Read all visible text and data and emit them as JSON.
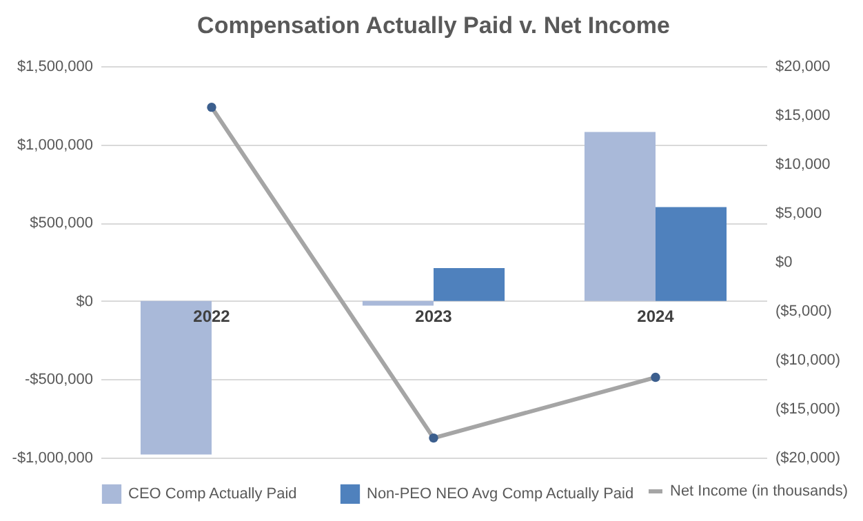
{
  "chart_data": {
    "type": "bar",
    "title": "Compensation Actually Paid v. Net Income",
    "categories": [
      "2022",
      "2023",
      "2024"
    ],
    "series": [
      {
        "name": "CEO Comp Actually Paid",
        "color": "#a9b9d9",
        "values": [
          -980000,
          -30000,
          1080000
        ]
      },
      {
        "name": "Non-PEO NEO Avg Comp Actually Paid",
        "color": "#4f81bd",
        "values": [
          null,
          210000,
          600000
        ]
      },
      {
        "name": "Net Income (in thousands)",
        "type": "line",
        "axis": "y2",
        "color": "#a5a5a5",
        "colors": [
          "#3c5f8e",
          "#3c5f8e",
          "#3c5f8e"
        ],
        "values": [
          15800,
          -18000,
          -11800
        ]
      }
    ],
    "ylim": [
      -1000000,
      1500000
    ],
    "yticks": [
      {
        "value": -1000000,
        "label": "-$1,000,000"
      },
      {
        "value": -500000,
        "label": "-$500,000"
      },
      {
        "value": 0,
        "label": "$0"
      },
      {
        "value": 500000,
        "label": "$500,000"
      },
      {
        "value": 1000000,
        "label": "$1,000,000"
      },
      {
        "value": 1500000,
        "label": "$1,500,000"
      }
    ],
    "y2lim": [
      -20000,
      20000
    ],
    "y2ticks": [
      {
        "value": -20000,
        "label": "($20,000)"
      },
      {
        "value": -15000,
        "label": "($15,000)"
      },
      {
        "value": -10000,
        "label": "($10,000)"
      },
      {
        "value": -5000,
        "label": "($5,000)"
      },
      {
        "value": 0,
        "label": "$0"
      },
      {
        "value": 5000,
        "label": "$5,000"
      },
      {
        "value": 10000,
        "label": "$10,000"
      },
      {
        "value": 15000,
        "label": "$15,000"
      },
      {
        "value": 20000,
        "label": "$20,000"
      }
    ],
    "grid": "y",
    "legend": "bottom",
    "marker": "circle"
  }
}
